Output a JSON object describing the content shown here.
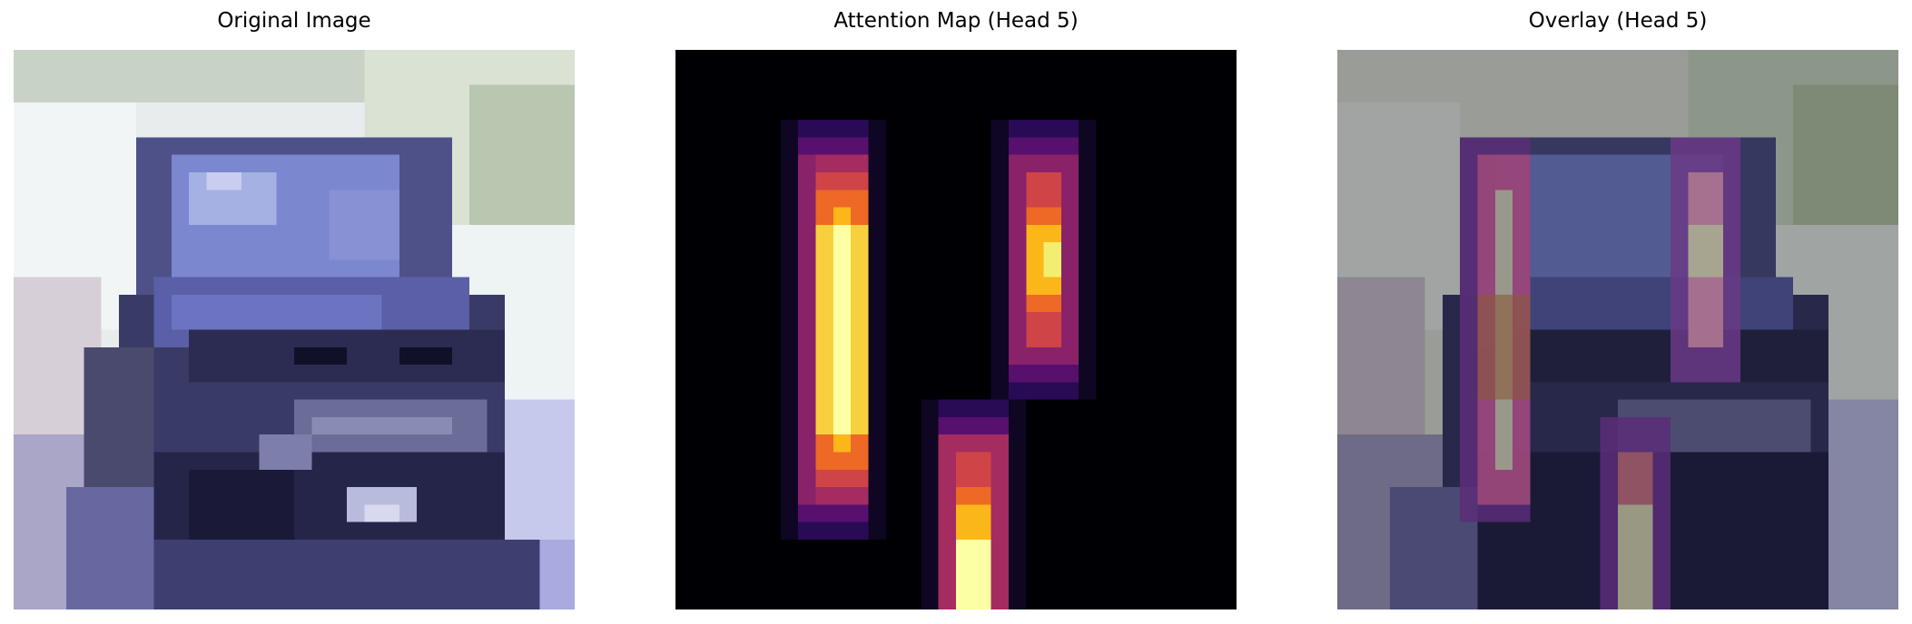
{
  "figure": {
    "panels": [
      {
        "title": "Original Image",
        "image": "cifar-style low-resolution photo of a blue-grey SUV viewed from the front"
      },
      {
        "title": "Attention Map (Head 5)",
        "image": "attention heatmap on black background with three vertical bright blobs in inferno colormap"
      },
      {
        "title": "Overlay (Head 5)",
        "image": "faded car photo with attention heatmap overlaid"
      }
    ],
    "colors": {
      "background": "#ffffff",
      "heat_black": "#000004",
      "heat_purple": "#57106e",
      "heat_magenta": "#a52c60",
      "heat_orange": "#ed6925",
      "heat_amber": "#fbb61a",
      "heat_yellow": "#fcffa4"
    }
  }
}
